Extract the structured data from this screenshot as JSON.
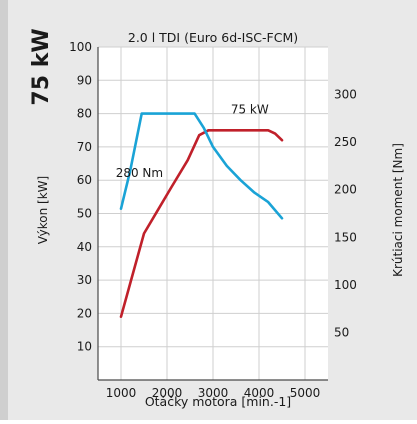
{
  "headline_power": "75 kW",
  "colors": {
    "page_background": "#e9e9e9",
    "sidebar_strip": "#cfcfcf",
    "plot_background": "#ffffff",
    "grid": "#cfcfcf",
    "axis_line": "#4a4a4a",
    "text": "#1a1a1a",
    "power_series": "#c0202a",
    "torque_series": "#1aa3d6"
  },
  "chart_data": {
    "type": "line",
    "title": "2.0 l TDI (Euro 6d-ISC-FCM)",
    "xlabel": "Otáčky motora [min.-1]",
    "ylabel_left": "Výkon [kW]",
    "ylabel_right": "Krútiaci moment [Nm]",
    "xlim": [
      500,
      5500
    ],
    "ylim_left": [
      0,
      100
    ],
    "ylim_right": [
      0,
      350
    ],
    "x_ticks": [
      1000,
      2000,
      3000,
      4000,
      5000
    ],
    "y_ticks_left": [
      10,
      20,
      30,
      40,
      50,
      60,
      70,
      80,
      90,
      100
    ],
    "y_ticks_right": [
      50,
      100,
      150,
      200,
      250,
      300
    ],
    "grid": true,
    "series": [
      {
        "name": "75 kW",
        "axis": "left",
        "color": "#c0202a",
        "points": [
          {
            "x": 1000,
            "y": 19
          },
          {
            "x": 1200,
            "y": 29
          },
          {
            "x": 1500,
            "y": 44
          },
          {
            "x": 1800,
            "y": 51
          },
          {
            "x": 2100,
            "y": 58
          },
          {
            "x": 2450,
            "y": 66
          },
          {
            "x": 2700,
            "y": 73.5
          },
          {
            "x": 2900,
            "y": 75
          },
          {
            "x": 3400,
            "y": 75
          },
          {
            "x": 3900,
            "y": 75
          },
          {
            "x": 4200,
            "y": 75
          },
          {
            "x": 4350,
            "y": 74
          },
          {
            "x": 4500,
            "y": 72
          }
        ]
      },
      {
        "name": "280 Nm",
        "axis": "right",
        "color": "#1aa3d6",
        "points": [
          {
            "x": 1000,
            "y": 180
          },
          {
            "x": 1200,
            "y": 220
          },
          {
            "x": 1450,
            "y": 280
          },
          {
            "x": 1700,
            "y": 280
          },
          {
            "x": 2000,
            "y": 280
          },
          {
            "x": 2400,
            "y": 280
          },
          {
            "x": 2600,
            "y": 280
          },
          {
            "x": 2800,
            "y": 265
          },
          {
            "x": 3000,
            "y": 245
          },
          {
            "x": 3300,
            "y": 225
          },
          {
            "x": 3600,
            "y": 210
          },
          {
            "x": 3900,
            "y": 197
          },
          {
            "x": 4200,
            "y": 187
          },
          {
            "x": 4500,
            "y": 170
          }
        ]
      }
    ],
    "annotations": [
      {
        "text": "75 kW",
        "x": 3800,
        "axis": "left",
        "y": 80
      },
      {
        "text": "280 Nm",
        "x": 1400,
        "axis": "left",
        "y": 61
      }
    ]
  }
}
